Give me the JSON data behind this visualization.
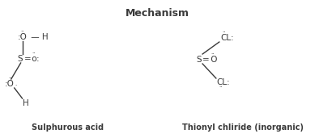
{
  "title": "Mechanism",
  "bg_color": "#ffffff",
  "text_color": "#3a3a3a",
  "line_color": "#3a3a3a",
  "mol1_label": "Sulphurous acid",
  "mol2_label": "Thionyl chliride (inorganic)"
}
